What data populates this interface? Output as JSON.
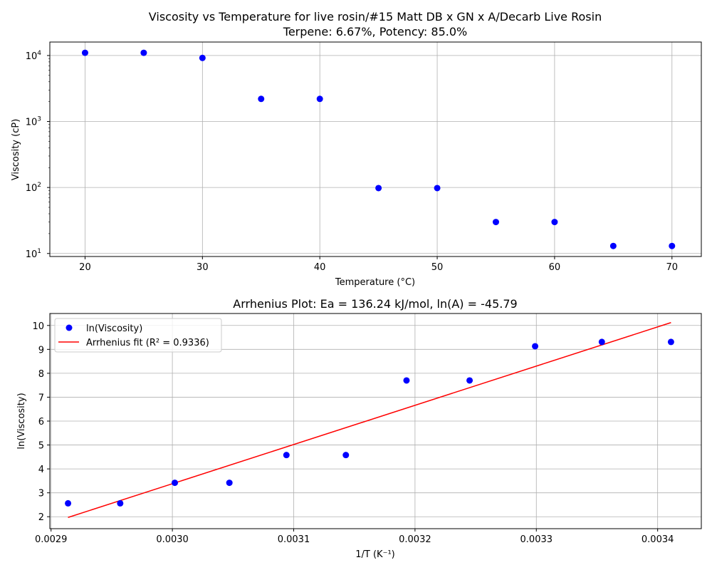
{
  "chart_data": [
    {
      "type": "scatter",
      "title": "Viscosity vs Temperature for live rosin/#15 Matt DB x GN x A/Decarb Live Rosin",
      "subtitle": "Terpene: 6.67%, Potency: 85.0%",
      "xlabel": "Temperature (°C)",
      "ylabel": "Viscosity (cP)",
      "yscale": "log",
      "xlim": [
        17,
        72.5
      ],
      "ylim": [
        9,
        16000
      ],
      "grid": true,
      "x_ticks": [
        20,
        30,
        40,
        50,
        60,
        70
      ],
      "y_ticks": [
        {
          "value": 10,
          "base": "10",
          "exp": "1"
        },
        {
          "value": 100,
          "base": "10",
          "exp": "2"
        },
        {
          "value": 1000,
          "base": "10",
          "exp": "3"
        },
        {
          "value": 10000,
          "base": "10",
          "exp": "4"
        }
      ],
      "marker_color": "#0000ff",
      "x": [
        20,
        25,
        30,
        35,
        40,
        45,
        50,
        55,
        60,
        65,
        70
      ],
      "y": [
        11000,
        11000,
        9200,
        2200,
        2200,
        98,
        98,
        30,
        30,
        13,
        13
      ]
    },
    {
      "type": "scatter",
      "title": "Arrhenius Plot: Ea = 136.24 kJ/mol, ln(A) = -45.79",
      "xlabel": "1/T (K⁻¹)",
      "ylabel": "ln(Viscosity)",
      "xlim": [
        0.002899,
        0.003436
      ],
      "ylim": [
        1.5,
        10.5
      ],
      "grid": true,
      "legend_position": "top-left",
      "x_ticks": [
        "0.0029",
        "0.0030",
        "0.0031",
        "0.0032",
        "0.0033",
        "0.0034"
      ],
      "y_ticks": [
        2,
        3,
        4,
        5,
        6,
        7,
        8,
        9,
        10
      ],
      "series": [
        {
          "name": "ln(Viscosity)",
          "kind": "scatter",
          "color": "#0000ff",
          "x": [
            0.002914,
            0.002957,
            0.003002,
            0.003047,
            0.003094,
            0.003143,
            0.003193,
            0.003245,
            0.003299,
            0.003354,
            0.003411
          ],
          "y": [
            2.56,
            2.56,
            3.42,
            3.42,
            4.58,
            4.58,
            7.7,
            7.7,
            9.13,
            9.31,
            9.31
          ]
        },
        {
          "name": "Arrhenius fit (R² = 0.9336)",
          "kind": "line",
          "color": "#ff0000",
          "x": [
            0.002914,
            0.003411
          ],
          "y": [
            1.97,
            10.12
          ]
        }
      ]
    }
  ]
}
